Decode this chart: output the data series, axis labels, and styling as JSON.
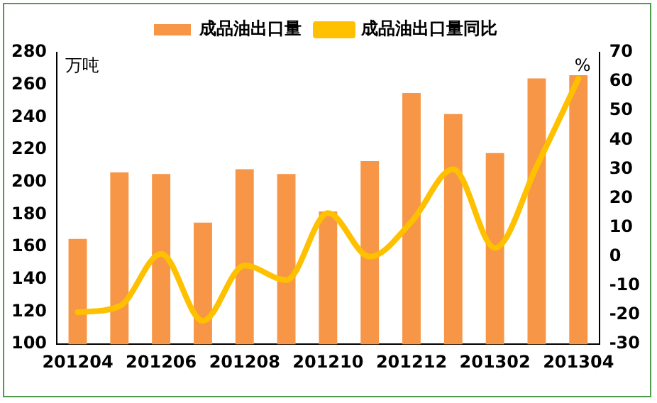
{
  "chart_data": {
    "type": "bar",
    "categories": [
      "201204",
      null,
      "201206",
      null,
      "201208",
      null,
      "201210",
      null,
      "201212",
      null,
      "201302",
      null,
      "201304"
    ],
    "series": [
      {
        "name": "成品油出口量",
        "color": "#f79646",
        "values": [
          165,
          206,
          205,
          175,
          208,
          205,
          182,
          213,
          255,
          242,
          218,
          264,
          266
        ]
      },
      {
        "name": "成品油出口量同比",
        "type": "line",
        "axis": "y2",
        "color": "#ffc000",
        "values": [
          -19,
          -17,
          1,
          -22,
          -3,
          -8,
          15,
          0,
          12,
          30,
          3,
          31,
          61
        ]
      }
    ],
    "ylabel": "万吨",
    "y2label": "%",
    "ylim": [
      100,
      280
    ],
    "yticks": [
      100,
      120,
      140,
      160,
      180,
      200,
      220,
      240,
      260,
      280
    ],
    "y2lim": [
      -30,
      70
    ],
    "y2ticks": [
      -30,
      -20,
      -10,
      0,
      10,
      20,
      30,
      40,
      50,
      60,
      70
    ],
    "grid": false,
    "legend": "top",
    "marker": "none"
  }
}
